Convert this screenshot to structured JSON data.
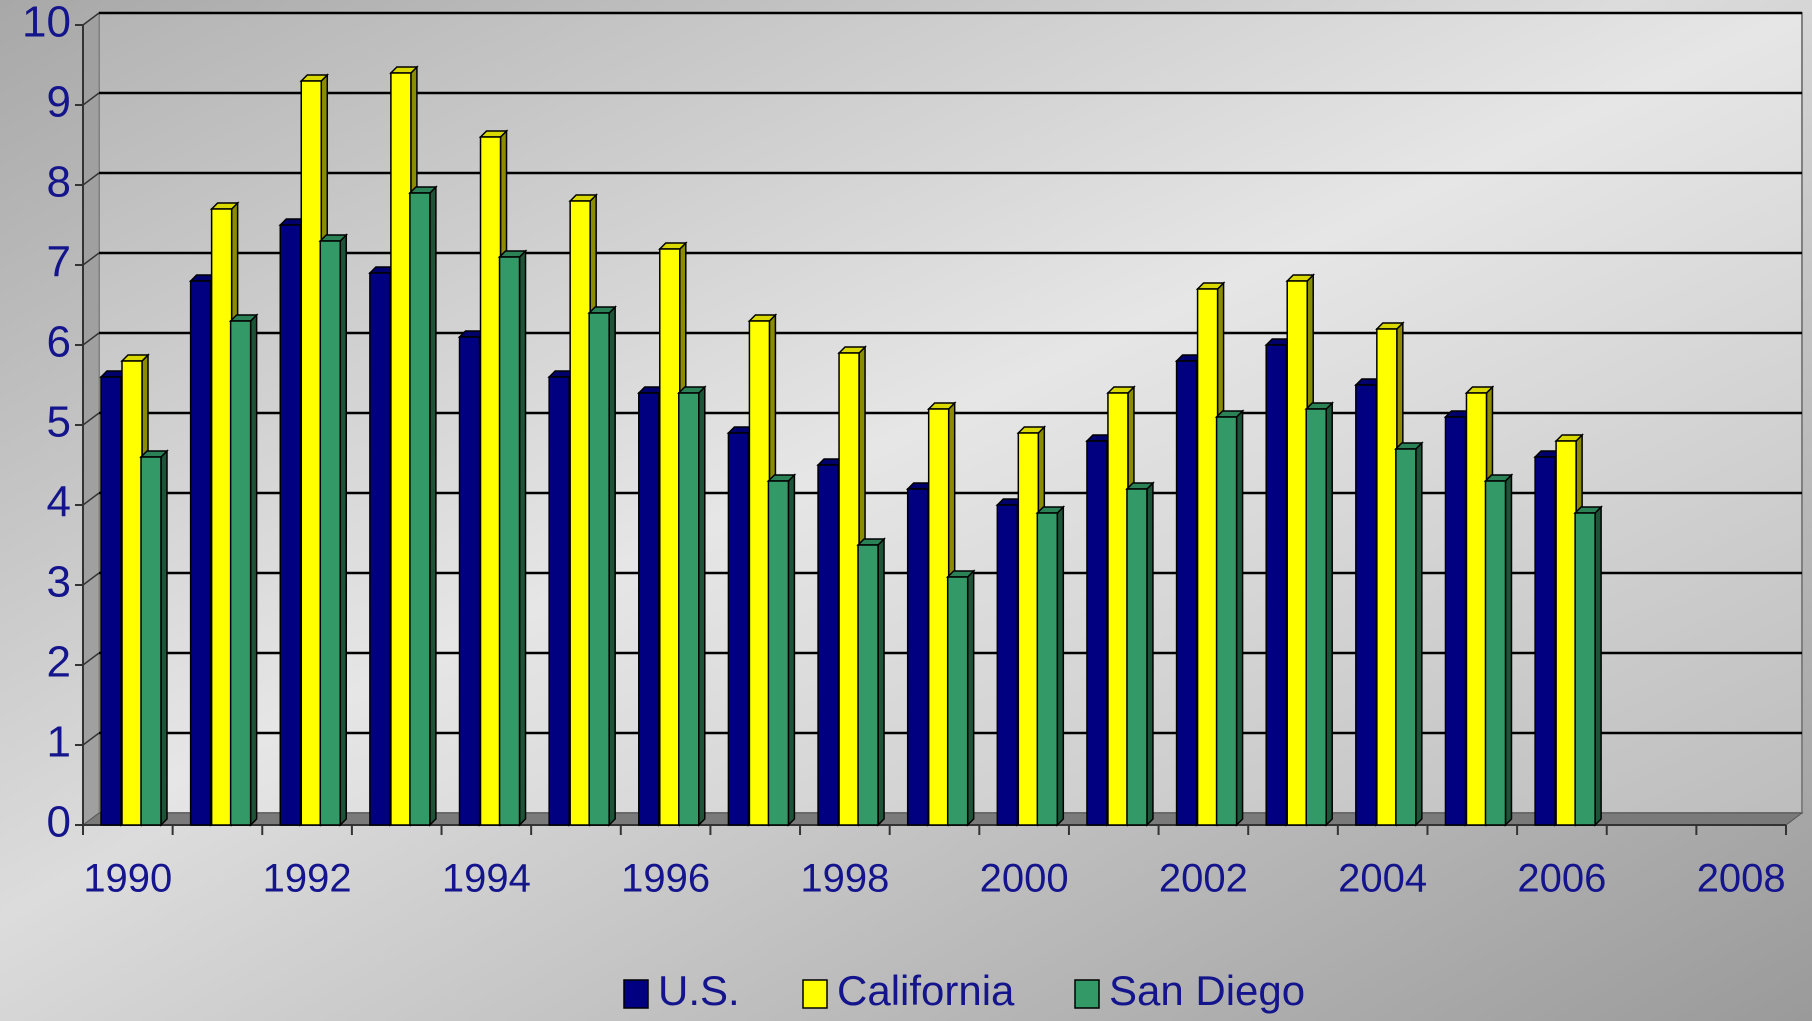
{
  "chart_data": {
    "type": "bar3d",
    "categories": [
      "1990",
      null,
      "1992",
      null,
      "1994",
      null,
      "1996",
      null,
      "1998",
      null,
      "2000",
      null,
      "2002",
      null,
      "2004",
      null,
      "2006",
      null,
      "2008"
    ],
    "series": [
      {
        "name": "U.S.",
        "color": "#000080",
        "values": [
          5.6,
          6.8,
          7.5,
          6.9,
          6.1,
          5.6,
          5.4,
          4.9,
          4.5,
          4.2,
          4.0,
          4.8,
          5.8,
          6.0,
          5.5,
          5.1,
          4.6,
          null,
          null
        ]
      },
      {
        "name": "California",
        "color": "#ffff00",
        "values": [
          5.8,
          7.7,
          9.3,
          9.4,
          8.6,
          7.8,
          7.2,
          6.3,
          5.9,
          5.2,
          4.9,
          5.4,
          6.7,
          6.8,
          6.2,
          5.4,
          4.8,
          null,
          null
        ]
      },
      {
        "name": "San Diego",
        "color": "#339966",
        "values": [
          4.6,
          6.3,
          7.3,
          7.9,
          7.1,
          6.4,
          5.4,
          4.3,
          3.5,
          3.1,
          3.9,
          4.2,
          5.1,
          5.2,
          4.7,
          4.3,
          3.9,
          null,
          null
        ]
      }
    ],
    "ylim": [
      0,
      10
    ],
    "yticks": [
      0,
      1,
      2,
      3,
      4,
      5,
      6,
      7,
      8,
      9,
      10
    ],
    "grid": true
  }
}
